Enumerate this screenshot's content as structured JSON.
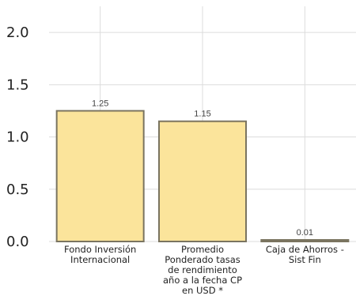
{
  "chart_data": {
    "type": "bar",
    "categories": [
      [
        "Fondo Inversión",
        "Internacional"
      ],
      [
        "Promedio",
        "Ponderado tasas",
        "de rendimiento",
        "año a la fecha CP",
        "en USD *"
      ],
      [
        "Caja de Ahorros -",
        "Sist Fin"
      ]
    ],
    "values": [
      1.25,
      1.15,
      0.01
    ],
    "data_labels": [
      "1.25",
      "1.15",
      "0.01"
    ],
    "y_ticks": [
      "0.0",
      "0.5",
      "1.0",
      "1.5",
      "2.0"
    ],
    "ylim": [
      0,
      2.25
    ],
    "grid": true,
    "colors": {
      "bar_fill": "#fbe49b",
      "bar_stroke": "#7a7460",
      "grid": "#dcdcdc"
    }
  }
}
